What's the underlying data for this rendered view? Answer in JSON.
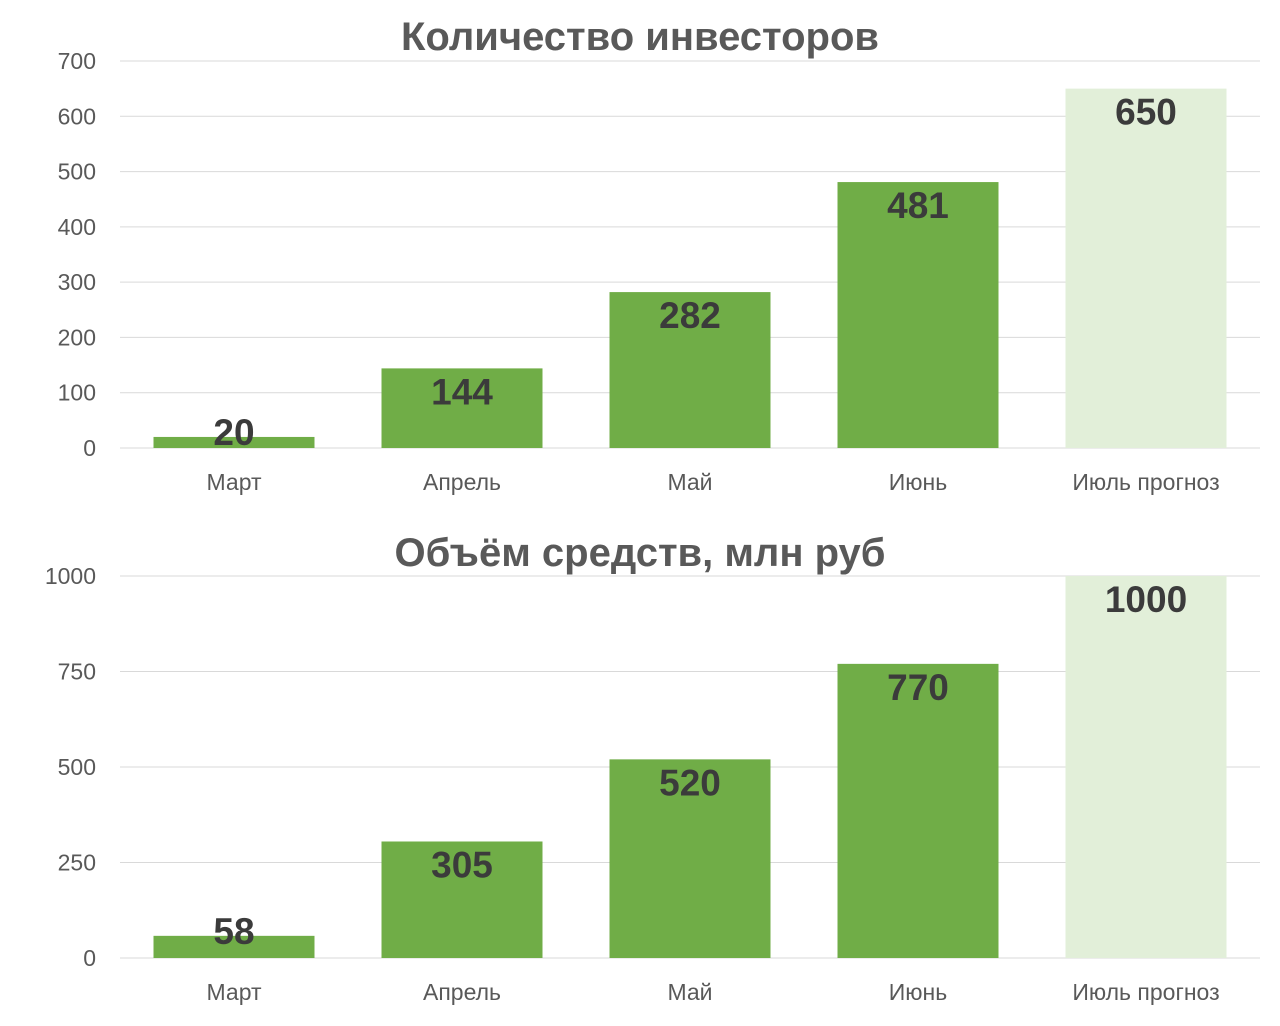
{
  "chart_data": [
    {
      "type": "bar",
      "title": "Количество инвесторов",
      "categories": [
        "Март",
        "Апрель",
        "Май",
        "Июнь",
        "Июль прогноз"
      ],
      "values": [
        20,
        144,
        282,
        481,
        650
      ],
      "data_labels": [
        "20",
        "144",
        "282",
        "481",
        "650"
      ],
      "ylim": [
        0,
        700
      ],
      "yticks": [
        "0",
        "100",
        "200",
        "300",
        "400",
        "500",
        "600",
        "700"
      ],
      "ytick_values": [
        0,
        100,
        200,
        300,
        400,
        500,
        600,
        700
      ],
      "grid": true,
      "colors": [
        "#70ad47",
        "#70ad47",
        "#70ad47",
        "#70ad47",
        "#e2efd9"
      ]
    },
    {
      "type": "bar",
      "title": "Объём средств, млн руб",
      "categories": [
        "Март",
        "Апрель",
        "Май",
        "Июнь",
        "Июль прогноз"
      ],
      "values": [
        58,
        305,
        520,
        770,
        1000
      ],
      "data_labels": [
        "58",
        "305",
        "520",
        "770",
        "1000"
      ],
      "ylim": [
        0,
        1000
      ],
      "yticks": [
        "0",
        "250",
        "500",
        "750",
        "1000"
      ],
      "ytick_values": [
        0,
        250,
        500,
        750,
        1000
      ],
      "grid": true,
      "colors": [
        "#70ad47",
        "#70ad47",
        "#70ad47",
        "#70ad47",
        "#e2efd9"
      ]
    }
  ]
}
